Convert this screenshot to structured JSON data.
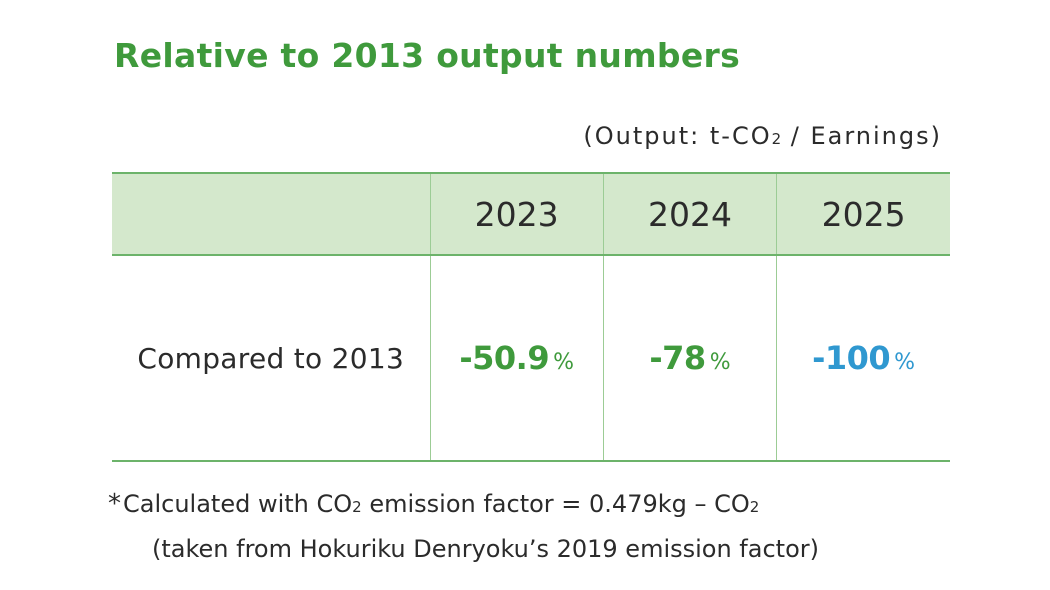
{
  "title": "Relative to 2013 output numbers",
  "unit_note": {
    "prefix": "(Output: t-CO",
    "subscript": "2",
    "suffix": " / Earnings)"
  },
  "colors": {
    "title": "#3f9a3c",
    "header_bg": "#d4e8cc",
    "rule": "#6cb36a",
    "value_green": "#3f9a3c",
    "value_blue": "#2f98d0"
  },
  "chart_data": {
    "type": "table",
    "title": "Relative to 2013 output numbers",
    "columns": [
      "",
      "2023",
      "2024",
      "2025"
    ],
    "rows": [
      {
        "label": "Compared to 2013",
        "cells": [
          {
            "value": "-50.9",
            "unit": "%",
            "color": "#3f9a3c"
          },
          {
            "value": "-78",
            "unit": "%",
            "color": "#3f9a3c"
          },
          {
            "value": "-100",
            "unit": "%",
            "color": "#2f98d0"
          }
        ]
      }
    ]
  },
  "footnote": {
    "mark": "*",
    "line1_prefix": "Calculated with CO",
    "line1_sub1": "2",
    "line1_middle": " emission factor = 0.479kg – CO",
    "line1_sub2": "2",
    "line2": "(taken from Hokuriku Denryoku’s 2019 emission factor)"
  }
}
